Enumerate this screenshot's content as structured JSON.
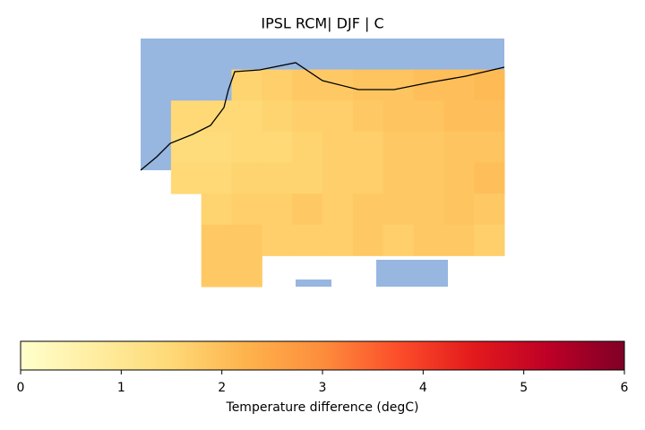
{
  "chart_data": {
    "type": "map",
    "title": "IPSL RCM| DJF | C",
    "cmap": "YlOrRd",
    "clim": [
      0,
      6
    ],
    "colorbar_ticks": [
      0,
      1,
      2,
      3,
      4,
      5,
      6
    ],
    "colorbar_label": "Temperature difference (degC)",
    "grid": [
      [
        null,
        null,
        null,
        null,
        null,
        null,
        null,
        null,
        null,
        null,
        null,
        null
      ],
      [
        null,
        null,
        null,
        1.6,
        1.7,
        1.8,
        1.8,
        1.9,
        1.9,
        2.0,
        2.0,
        2.1
      ],
      [
        null,
        1.5,
        1.5,
        1.5,
        1.6,
        1.7,
        1.7,
        1.8,
        1.9,
        1.9,
        2.0,
        2.0
      ],
      [
        null,
        1.4,
        1.4,
        1.5,
        1.5,
        1.6,
        1.7,
        1.7,
        1.8,
        1.8,
        1.9,
        1.9
      ],
      [
        null,
        1.5,
        1.5,
        1.6,
        1.6,
        1.6,
        1.7,
        1.7,
        1.8,
        1.8,
        1.9,
        2.0
      ],
      [
        null,
        null,
        1.6,
        1.7,
        1.7,
        1.8,
        1.7,
        1.8,
        1.8,
        1.8,
        1.9,
        1.8
      ],
      [
        null,
        null,
        1.8,
        1.8,
        1.7,
        1.7,
        1.7,
        1.8,
        1.7,
        1.8,
        1.8,
        1.7
      ],
      [
        null,
        null,
        1.8,
        1.8,
        null,
        null,
        null,
        null,
        null,
        null,
        null,
        null
      ]
    ]
  }
}
